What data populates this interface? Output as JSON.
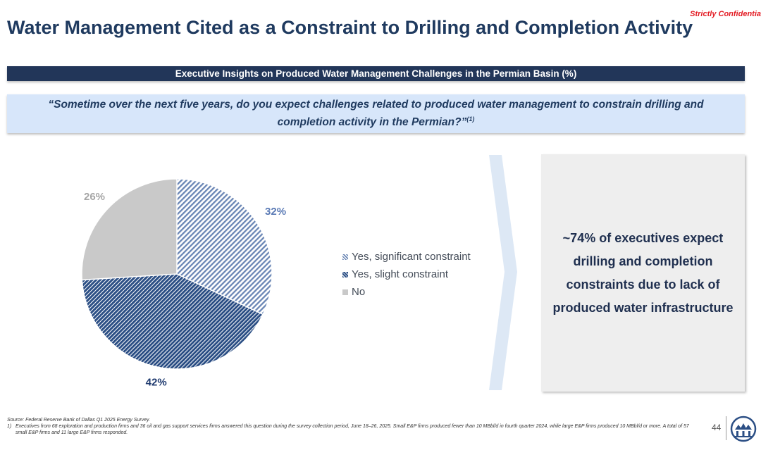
{
  "confidential_label": "Strictly Confidentia",
  "title": "Water Management Cited as a Constraint to Drilling and Completion Activity",
  "section_header": "Executive Insights on Produced Water Management Challenges in the Permian Basin (%)",
  "question": {
    "text": "“Sometime over the next five years, do you expect challenges related to produced water management to constrain drilling and completion activity in the Permian?”",
    "footnote_ref": "(1)"
  },
  "chart_data": {
    "type": "pie",
    "slices": [
      {
        "label": "Yes, significant constraint",
        "value": 32,
        "value_label": "32%",
        "color": "#6a86b5",
        "pattern": "light-diagonal-hatch"
      },
      {
        "label": "Yes, slight constraint",
        "value": 42,
        "value_label": "42%",
        "color": "#2c4f85",
        "pattern": "dense-diagonal-hatch"
      },
      {
        "label": "No",
        "value": 26,
        "value_label": "26%",
        "color": "#c9c9c9",
        "pattern": "solid"
      }
    ],
    "legend_position": "right"
  },
  "insight_text": "~74% of executives expect drilling and completion constraints due to lack of produced water infrastructure",
  "footnotes": {
    "source": "Source: Federal Reserve Bank of Dallas Q1 2025 Energy Survey.",
    "note_number": "1)",
    "note_text": "Executives from 68 exploration and production firms and 36 oil and gas support services firms answered this question during the survey collection period, June 18–26, 2025. Small E&P firms produced fewer than 10 MBbl/d in fourth quarter 2024, while large E&P firms produced 10 MBbl/d or more. A total of 57 small E&P firms and 11 large E&P firms responded."
  },
  "page_number": "44",
  "logo_icon": "company-logo-icon"
}
